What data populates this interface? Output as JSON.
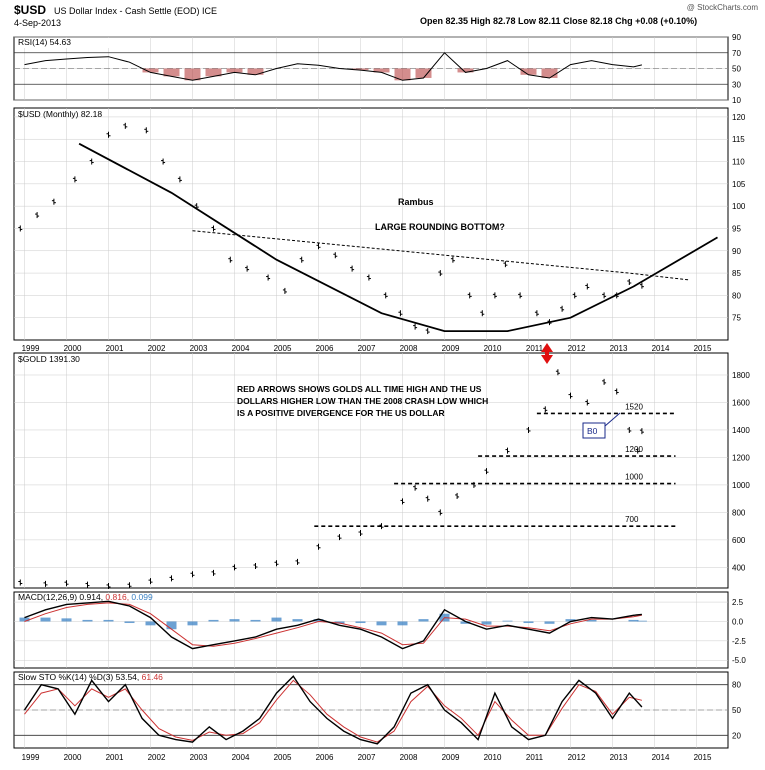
{
  "header": {
    "symbol": "$USD",
    "name": "US Dollar Index - Cash Settle (EOD)  ICE",
    "date": "4-Sep-2013",
    "quote": "Open 82.35  High 82.78  Low 82.11  Close 82.18  Chg +0.08 (+0.10%)",
    "watermark": "@ StockCharts.com"
  },
  "colors": {
    "grid": "#cccccc",
    "axis": "#000000",
    "rsi_neg": "#b03030",
    "macd_line": "#000000",
    "signal_line": "#cc3333",
    "hist": "#3b82c4",
    "arrow": "#e01010",
    "callout": "#1a2a8a"
  },
  "chart_data": [
    {
      "id": "rsi",
      "type": "line",
      "legend": "RSI(14) 54.63",
      "ylim": [
        10,
        90
      ],
      "y_ticks": [
        10,
        30,
        50,
        70,
        90
      ],
      "ref_lines": [
        30,
        70
      ],
      "x": [
        1999,
        1999.5,
        2000,
        2000.5,
        2001,
        2001.5,
        2002,
        2002.5,
        2003,
        2003.5,
        2004,
        2004.5,
        2005,
        2005.5,
        2006,
        2006.5,
        2007,
        2007.5,
        2008,
        2008.5,
        2009,
        2009.5,
        2010,
        2010.5,
        2011,
        2011.5,
        2012,
        2012.5,
        2013,
        2013.5,
        2013.7
      ],
      "values": [
        55,
        60,
        62,
        64,
        65,
        58,
        45,
        40,
        35,
        40,
        45,
        42,
        50,
        56,
        54,
        50,
        48,
        45,
        35,
        38,
        70,
        45,
        50,
        60,
        42,
        38,
        55,
        60,
        55,
        52,
        54.63
      ]
    },
    {
      "id": "usd",
      "type": "line",
      "legend": "$USD (Monthly) 82.18",
      "ylim": [
        70,
        122
      ],
      "y_ticks": [
        75,
        80,
        85,
        90,
        95,
        100,
        105,
        110,
        115,
        120
      ],
      "x_ticks": [
        "1999",
        "2000",
        "2001",
        "2002",
        "2003",
        "2004",
        "2005",
        "2006",
        "2007",
        "2008",
        "2009",
        "2010",
        "2011",
        "2012",
        "2013",
        "2014",
        "2015"
      ],
      "x": [
        1998.9,
        1999.3,
        1999.7,
        2000.2,
        2000.6,
        2001.0,
        2001.4,
        2001.9,
        2002.3,
        2002.7,
        2003.1,
        2003.5,
        2003.9,
        2004.3,
        2004.8,
        2005.2,
        2005.6,
        2006.0,
        2006.4,
        2006.8,
        2007.2,
        2007.6,
        2007.95,
        2008.3,
        2008.6,
        2008.9,
        2009.2,
        2009.6,
        2009.9,
        2010.2,
        2010.45,
        2010.8,
        2011.2,
        2011.5,
        2011.8,
        2012.1,
        2012.4,
        2012.8,
        2013.1,
        2013.4,
        2013.7
      ],
      "values": [
        95,
        98,
        101,
        106,
        110,
        116,
        118,
        117,
        110,
        106,
        100,
        95,
        88,
        86,
        84,
        81,
        88,
        91,
        89,
        86,
        84,
        80,
        76,
        73,
        72,
        85,
        88,
        80,
        76,
        80,
        87,
        80,
        76,
        74,
        77,
        80,
        82,
        80,
        80,
        83,
        82.18
      ],
      "annotations": {
        "author": "Rambus",
        "title": "LARGE ROUNDING BOTTOM?"
      }
    },
    {
      "id": "gold",
      "type": "line",
      "legend": "$GOLD  1391.30",
      "ylim": [
        250,
        1960
      ],
      "y_ticks": [
        400,
        600,
        800,
        1000,
        1200,
        1400,
        1600,
        1800
      ],
      "x": [
        1998.9,
        1999.5,
        2000,
        2000.5,
        2001,
        2001.5,
        2002,
        2002.5,
        2003,
        2003.5,
        2004,
        2004.5,
        2005,
        2005.5,
        2006,
        2006.5,
        2007,
        2007.5,
        2008,
        2008.3,
        2008.6,
        2008.9,
        2009.3,
        2009.7,
        2010,
        2010.5,
        2011,
        2011.4,
        2011.7,
        2012,
        2012.4,
        2012.8,
        2013.1,
        2013.4,
        2013.6,
        2013.7
      ],
      "values": [
        290,
        280,
        285,
        275,
        265,
        270,
        300,
        320,
        350,
        360,
        400,
        410,
        430,
        440,
        550,
        620,
        650,
        700,
        880,
        980,
        900,
        800,
        920,
        1000,
        1100,
        1250,
        1400,
        1550,
        1820,
        1650,
        1600,
        1750,
        1680,
        1400,
        1250,
        1391.3
      ],
      "support_lines": [
        {
          "label": "1520",
          "value": 1520
        },
        {
          "label": "1200",
          "value": 1210
        },
        {
          "label": "1000",
          "value": 1010
        },
        {
          "label": "700",
          "value": 700
        }
      ],
      "annotations": {
        "note": "RED ARROWS SHOWS GOLDS ALL TIME HIGH AND THE US DOLLARS HIGHER LOW THAN THE 2008 CRASH LOW WHICH IS A POSITIVE DIVERGENCE FOR THE US DOLLAR",
        "callout": "B0"
      }
    },
    {
      "id": "macd",
      "type": "line",
      "legend_name": "MACD(12,26,9)",
      "legend_values": [
        "0.914",
        "0.816",
        "0.099"
      ],
      "ylim": [
        -6,
        3.8
      ],
      "y_ticks": [
        -5.0,
        -2.5,
        0.0,
        2.5
      ],
      "x": [
        1999,
        1999.5,
        2000,
        2000.5,
        2001,
        2001.5,
        2002,
        2002.5,
        2003,
        2003.5,
        2004,
        2004.5,
        2005,
        2005.5,
        2006,
        2006.5,
        2007,
        2007.5,
        2008,
        2008.5,
        2009,
        2009.5,
        2010,
        2010.5,
        2011,
        2011.5,
        2012,
        2012.5,
        2013,
        2013.5,
        2013.7
      ],
      "series": [
        {
          "values": [
            0.5,
            1.5,
            2.2,
            2.4,
            2.6,
            2.0,
            0.5,
            -2.0,
            -3.5,
            -3.0,
            -2.5,
            -2.0,
            -1.0,
            -0.5,
            0.3,
            -0.5,
            -1.0,
            -2.0,
            -3.5,
            -2.5,
            1.5,
            0.0,
            -1.0,
            -0.5,
            -1.0,
            -1.5,
            0.0,
            0.5,
            0.3,
            0.8,
            0.914
          ]
        },
        {
          "values": [
            0.0,
            1.0,
            1.8,
            2.2,
            2.4,
            2.2,
            1.0,
            -1.0,
            -3.0,
            -3.2,
            -2.8,
            -2.2,
            -1.5,
            -0.8,
            0.0,
            -0.2,
            -0.8,
            -1.5,
            -3.0,
            -2.8,
            0.5,
            0.3,
            -0.6,
            -0.6,
            -0.8,
            -1.2,
            -0.3,
            0.3,
            0.3,
            0.6,
            0.816
          ]
        },
        {
          "values": [
            0.5,
            0.5,
            0.4,
            0.2,
            0.2,
            -0.2,
            -0.5,
            -1.0,
            -0.5,
            0.2,
            0.3,
            0.2,
            0.5,
            0.3,
            0.3,
            -0.3,
            -0.2,
            -0.5,
            -0.5,
            0.3,
            1.0,
            -0.3,
            -0.4,
            0.1,
            -0.2,
            -0.3,
            0.3,
            0.2,
            0.0,
            0.2,
            0.099
          ]
        }
      ]
    },
    {
      "id": "sto",
      "type": "line",
      "legend_name": "Slow STO %K(14) %D(3)",
      "legend_values": [
        "53.54",
        "61.46"
      ],
      "ylim": [
        5,
        95
      ],
      "y_ticks": [
        20,
        50,
        80
      ],
      "ref_lines": [
        20,
        80
      ],
      "x": [
        1999,
        1999.4,
        1999.8,
        2000.2,
        2000.6,
        2001,
        2001.4,
        2001.8,
        2002.2,
        2002.6,
        2003,
        2003.4,
        2003.8,
        2004.2,
        2004.6,
        2005,
        2005.4,
        2005.8,
        2006.2,
        2006.6,
        2007,
        2007.4,
        2007.8,
        2008.2,
        2008.6,
        2009,
        2009.4,
        2009.8,
        2010.2,
        2010.6,
        2011,
        2011.4,
        2011.8,
        2012.2,
        2012.6,
        2013,
        2013.4,
        2013.7
      ],
      "series": [
        {
          "values": [
            50,
            80,
            75,
            45,
            85,
            60,
            80,
            40,
            20,
            15,
            12,
            30,
            15,
            25,
            40,
            70,
            90,
            60,
            40,
            25,
            15,
            10,
            30,
            70,
            80,
            50,
            35,
            15,
            70,
            30,
            15,
            20,
            60,
            85,
            70,
            40,
            70,
            53.54
          ]
        },
        {
          "values": [
            45,
            70,
            75,
            55,
            75,
            65,
            75,
            50,
            28,
            18,
            14,
            24,
            20,
            22,
            35,
            62,
            85,
            68,
            45,
            30,
            18,
            12,
            25,
            60,
            78,
            55,
            40,
            20,
            60,
            38,
            20,
            20,
            52,
            80,
            72,
            45,
            65,
            61.46
          ]
        }
      ]
    }
  ]
}
